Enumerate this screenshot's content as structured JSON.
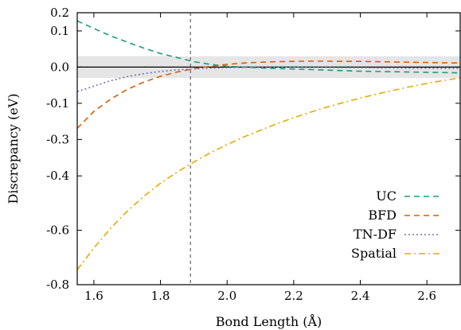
{
  "chart_data": {
    "type": "line",
    "title": "",
    "xlabel": "Bond Length (Å)",
    "ylabel": "Discrepancy (eV)",
    "xlim": [
      1.55,
      2.7
    ],
    "ylim": [
      -0.8,
      0.2
    ],
    "x_ticks": [
      1.6,
      1.8,
      2.0,
      2.2,
      2.4,
      2.6
    ],
    "x_tick_labels": [
      "1.6",
      "1.8",
      "2.0",
      "2.2",
      "2.4",
      "2.6"
    ],
    "y_ticks": [
      -0.8,
      -0.6,
      -0.4,
      -0.3,
      -0.1,
      0.0,
      0.1,
      0.2
    ],
    "y_tick_positions": [
      -0.8,
      -0.6,
      -0.4,
      -0.266,
      -0.133,
      0.0,
      0.133,
      0.2
    ],
    "y_tick_labels": [
      "-0.8",
      "-0.6",
      "-0.4",
      "-0.3",
      "-0.1",
      "0.0",
      "0.1",
      "0.2"
    ],
    "shaded_band": [
      -0.04,
      0.04
    ],
    "band_color": "#e5e5e5",
    "zero_line": 0.0,
    "vertical_reference_line": 1.89,
    "grid": false,
    "legend_position": "bottom-right",
    "x": [
      1.55,
      1.6,
      1.65,
      1.7,
      1.75,
      1.8,
      1.85,
      1.9,
      1.95,
      2.0,
      2.05,
      2.1,
      2.15,
      2.2,
      2.25,
      2.3,
      2.35,
      2.4,
      2.45,
      2.5,
      2.55,
      2.6,
      2.65,
      2.7
    ],
    "series": [
      {
        "name": "UC",
        "color": "#1b9e77",
        "dash": "dashed",
        "values": [
          0.17,
          0.142,
          0.115,
          0.092,
          0.07,
          0.05,
          0.035,
          0.02,
          0.01,
          0.003,
          0.0,
          -0.003,
          -0.005,
          -0.007,
          -0.009,
          -0.011,
          -0.013,
          -0.015,
          -0.016,
          -0.017,
          -0.018,
          -0.019,
          -0.02,
          -0.021
        ]
      },
      {
        "name": "BFD",
        "color": "#d95f02",
        "dash": "dashed",
        "values": [
          -0.225,
          -0.163,
          -0.118,
          -0.082,
          -0.055,
          -0.034,
          -0.018,
          -0.006,
          0.003,
          0.01,
          0.015,
          0.018,
          0.02,
          0.021,
          0.022,
          0.022,
          0.021,
          0.021,
          0.02,
          0.019,
          0.018,
          0.017,
          0.016,
          0.015
        ]
      },
      {
        "name": "TN-DF",
        "color": "#7570b3",
        "dash": "dotted",
        "values": [
          -0.09,
          -0.07,
          -0.05,
          -0.035,
          -0.024,
          -0.016,
          -0.01,
          -0.006,
          -0.004,
          -0.002,
          -0.001,
          -0.001,
          0.0,
          0.0,
          -0.001,
          -0.001,
          -0.002,
          -0.002,
          -0.003,
          -0.003,
          -0.004,
          -0.004,
          -0.005,
          -0.005
        ]
      },
      {
        "name": "Spatial",
        "color": "#e6ab02",
        "dash": "dashdot",
        "values": [
          -0.745,
          -0.665,
          -0.593,
          -0.53,
          -0.475,
          -0.427,
          -0.386,
          -0.349,
          -0.315,
          -0.285,
          -0.257,
          -0.232,
          -0.208,
          -0.186,
          -0.166,
          -0.147,
          -0.13,
          -0.114,
          -0.099,
          -0.085,
          -0.072,
          -0.06,
          -0.049,
          -0.04
        ]
      }
    ]
  }
}
